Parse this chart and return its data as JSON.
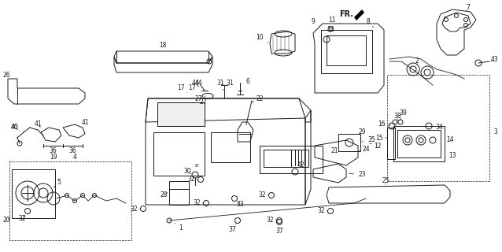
{
  "bg": "#ffffff",
  "lc": "#1a1a1a",
  "figsize": [
    6.38,
    3.2
  ],
  "dpi": 100
}
